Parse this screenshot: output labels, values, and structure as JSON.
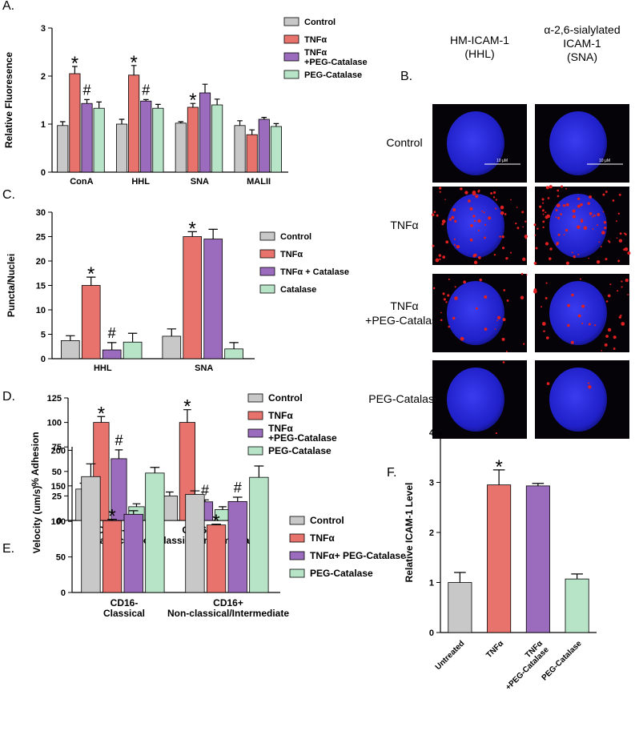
{
  "chart_data": [
    {
      "type": "bar",
      "panel_label": "A.",
      "y_label": "Relative Fluoresence",
      "categories": [
        "ConA",
        "HHL",
        "SNA",
        "MALII"
      ],
      "series": [
        {
          "name": "Control",
          "color": "#c8c8c8",
          "values": [
            0.97,
            1.0,
            1.02,
            0.97
          ],
          "errors": [
            0.08,
            0.1,
            0.03,
            0.1
          ]
        },
        {
          "name": "TNFα",
          "color": "#e8736c",
          "values": [
            2.05,
            2.02,
            1.35,
            0.78
          ],
          "errors": [
            0.15,
            0.2,
            0.08,
            0.1
          ]
        },
        {
          "name": "TNFα\n+PEG-Catalase",
          "color": "#9b6bbd",
          "values": [
            1.43,
            1.48,
            1.65,
            1.1
          ],
          "errors": [
            0.08,
            0.03,
            0.18,
            0.04
          ]
        },
        {
          "name": "PEG-Catalase",
          "color": "#b7e4c7",
          "values": [
            1.33,
            1.33,
            1.4,
            0.95
          ],
          "errors": [
            0.13,
            0.08,
            0.12,
            0.06
          ]
        }
      ],
      "ylim": [
        0,
        3
      ],
      "yticks": [
        0,
        1,
        2,
        3
      ],
      "annotations": [
        {
          "text": "*",
          "series": 1,
          "category": 0
        },
        {
          "text": "*",
          "series": 1,
          "category": 1
        },
        {
          "text": "*",
          "series": 1,
          "category": 2
        },
        {
          "text": "#",
          "series": 2,
          "category": 0
        },
        {
          "text": "#",
          "series": 2,
          "category": 1
        }
      ]
    },
    {
      "type": "bar",
      "panel_label": "C.",
      "y_label": "Puncta/Nuclei",
      "categories": [
        "HHL",
        "SNA"
      ],
      "series": [
        {
          "name": "Control",
          "color": "#c8c8c8",
          "values": [
            3.7,
            4.6
          ],
          "errors": [
            1,
            1.5
          ]
        },
        {
          "name": "TNFα",
          "color": "#e8736c",
          "values": [
            15,
            25
          ],
          "errors": [
            1.7,
            1
          ]
        },
        {
          "name": "TNFα + Catalase",
          "color": "#9b6bbd",
          "values": [
            1.8,
            24.5
          ],
          "errors": [
            1.5,
            2
          ]
        },
        {
          "name": "Catalase",
          "color": "#b7e4c7",
          "values": [
            3.4,
            2
          ],
          "errors": [
            1.8,
            1.3
          ]
        }
      ],
      "ylim": [
        0,
        30
      ],
      "yticks": [
        0,
        5,
        10,
        15,
        20,
        25,
        30
      ],
      "annotations": [
        {
          "text": "*",
          "series": 1,
          "category": 0
        },
        {
          "text": "#",
          "series": 2,
          "category": 0
        },
        {
          "text": "*",
          "series": 1,
          "category": 1
        }
      ]
    },
    {
      "type": "bar",
      "panel_label": "D.",
      "y_label": "% Adhesion",
      "categories": [
        "CD16-\nClassical",
        "CD16+\nNon-classical/Intermediate"
      ],
      "series": [
        {
          "name": "Control",
          "color": "#c8c8c8",
          "values": [
            32,
            25
          ],
          "errors": [
            6,
            4
          ]
        },
        {
          "name": "TNFα",
          "color": "#e8736c",
          "values": [
            100,
            100
          ],
          "errors": [
            6,
            13
          ]
        },
        {
          "name": "TNFα\n+PEG-Catalase",
          "color": "#9b6bbd",
          "values": [
            63,
            19
          ],
          "errors": [
            9,
            2
          ]
        },
        {
          "name": "PEG-Catalase",
          "color": "#b7e4c7",
          "values": [
            14,
            11
          ],
          "errors": [
            3,
            3
          ]
        }
      ],
      "ylim": [
        0,
        125
      ],
      "yticks": [
        0,
        25,
        50,
        75,
        100,
        125
      ],
      "annotations": [
        {
          "text": "*",
          "series": 1,
          "category": 0
        },
        {
          "text": "#",
          "series": 2,
          "category": 0
        },
        {
          "text": "*",
          "series": 1,
          "category": 1
        },
        {
          "text": "#",
          "series": 2,
          "category": 1
        }
      ]
    },
    {
      "type": "bar",
      "panel_label": "E.",
      "y_label": "Velocity (um/s)",
      "categories": [
        "CD16-\nClassical",
        "CD16+\nNon-classical/Intermediate"
      ],
      "series": [
        {
          "name": "Control",
          "color": "#c8c8c8",
          "values": [
            163,
            138
          ],
          "errors": [
            18,
            5
          ]
        },
        {
          "name": "TNFα",
          "color": "#e8736c",
          "values": [
            101,
            95
          ],
          "errors": [
            2,
            1
          ]
        },
        {
          "name": "TNFα+ PEG-Catalase",
          "color": "#9b6bbd",
          "values": [
            110,
            128
          ],
          "errors": [
            5,
            6
          ]
        },
        {
          "name": "PEG-Catalase",
          "color": "#b7e4c7",
          "values": [
            168,
            162
          ],
          "errors": [
            8,
            16
          ]
        }
      ],
      "ylim": [
        0,
        205
      ],
      "yticks": [
        0,
        50,
        100,
        150,
        200
      ],
      "annotations": [
        {
          "text": "*",
          "series": 1,
          "category": 0
        },
        {
          "text": "*",
          "series": 1,
          "category": 1
        },
        {
          "text": "#",
          "series": 2,
          "category": 1
        }
      ]
    },
    {
      "type": "bar",
      "panel_label": "F.",
      "y_label": "Relative ICAM-1  Level",
      "categories": [
        "Untreated",
        "TNFα",
        "TNFα\n+PEG-Catalase",
        "PEG-Catalase"
      ],
      "values": [
        1.0,
        2.95,
        2.93,
        1.07
      ],
      "errors": [
        0.2,
        0.3,
        0.05,
        0.1
      ],
      "colors": [
        "#c8c8c8",
        "#e8736c",
        "#9b6bbd",
        "#b7e4c7"
      ],
      "ylim": [
        0,
        4
      ],
      "yticks": [
        0,
        1,
        2,
        3,
        4
      ],
      "annotations": [
        {
          "text": "*",
          "category": 1
        }
      ]
    }
  ],
  "image_panel": {
    "label": "B.",
    "columns": [
      "HM-ICAM-1\n(HHL)",
      "α-2,6-sialylated\nICAM-1\n(SNA)"
    ],
    "rows": [
      "Control",
      "TNFα",
      "TNFα\n+PEG-Catalase",
      "PEG-Catalase"
    ],
    "scale_bar": "10 μM"
  }
}
